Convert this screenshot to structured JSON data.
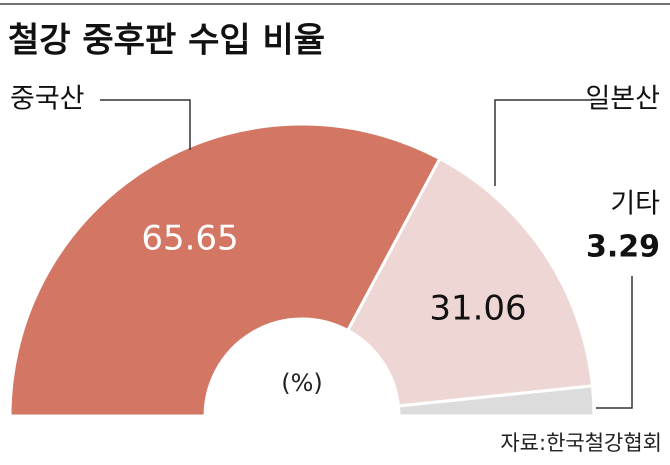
{
  "chart_data": {
    "type": "half-donut",
    "title": "철강 중후판 수입 비율",
    "categories": [
      "중국산",
      "일본산",
      "기타"
    ],
    "values": [
      65.65,
      31.06,
      3.29
    ],
    "colors": [
      "#d47664",
      "#eed6d4",
      "#dcdcdc"
    ],
    "unit": "(%)",
    "source": "자료:한국철강협회"
  }
}
